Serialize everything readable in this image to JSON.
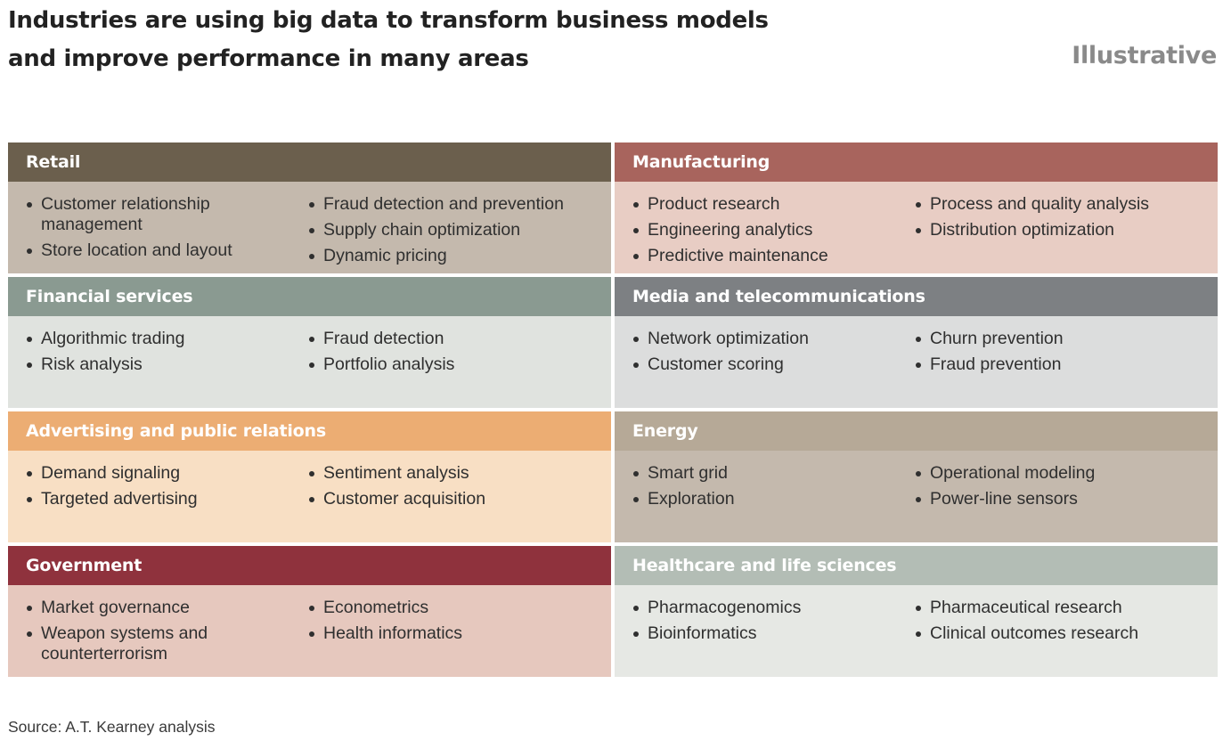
{
  "header": {
    "title_line1": "Industries are using big data to transform business models",
    "title_line2": "and improve performance in many areas",
    "tag": "Illustrative"
  },
  "panels": [
    {
      "title": "Retail",
      "header_color": "#6b5f4d",
      "body_color": "#c4b9ad",
      "col1": [
        "Customer relationship management",
        "Store location and layout"
      ],
      "col2": [
        "Fraud detection and prevention",
        "Supply chain optimization",
        "Dynamic pricing"
      ]
    },
    {
      "title": "Manufacturing",
      "header_color": "#a8645d",
      "body_color": "#e8cdc4",
      "col1": [
        "Product research",
        "Engineering analytics",
        "Predictive maintenance"
      ],
      "col2": [
        "Process and quality analysis",
        "Distribution optimization"
      ]
    },
    {
      "title": "Financial services",
      "header_color": "#8a9a91",
      "body_color": "#e0e3df",
      "col1": [
        "Algorithmic trading",
        "Risk analysis"
      ],
      "col2": [
        "Fraud detection",
        "Portfolio analysis"
      ]
    },
    {
      "title": "Media and telecommunications",
      "header_color": "#7d8083",
      "body_color": "#dcdddd",
      "col1": [
        "Network optimization",
        "Customer scoring"
      ],
      "col2": [
        "Churn prevention",
        "Fraud prevention"
      ]
    },
    {
      "title": "Advertising and public relations",
      "header_color": "#ecad73",
      "body_color": "#f8dfc4",
      "col1": [
        "Demand signaling",
        "Targeted advertising"
      ],
      "col2": [
        "Sentiment analysis",
        "Customer acquisition"
      ]
    },
    {
      "title": "Energy",
      "header_color": "#b6a997",
      "body_color": "#c4b9ad",
      "col1": [
        "Smart grid",
        "Exploration"
      ],
      "col2": [
        "Operational modeling",
        "Power-line sensors"
      ]
    },
    {
      "title": "Government",
      "header_color": "#8f323d",
      "body_color": "#e6c8be",
      "col1": [
        "Market governance",
        "Weapon systems and counterterrorism"
      ],
      "col2": [
        "Econometrics",
        "Health informatics"
      ]
    },
    {
      "title": "Healthcare and life sciences",
      "header_color": "#b3bdb5",
      "body_color": "#e6e8e4",
      "col1": [
        "Pharmacogenomics",
        "Bioinformatics"
      ],
      "col2": [
        "Pharmaceutical research",
        "Clinical outcomes research"
      ]
    }
  ],
  "footer": {
    "source": "Source: A.T. Kearney analysis"
  }
}
